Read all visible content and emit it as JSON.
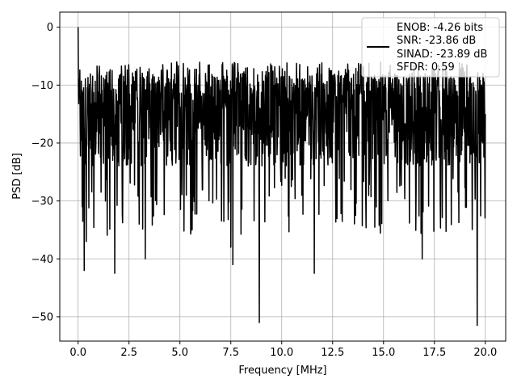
{
  "chart_data": {
    "type": "line",
    "title": "",
    "xlabel": "Frequency [MHz]",
    "ylabel": "PSD [dB]",
    "xlim": [
      -0.9,
      21.0
    ],
    "ylim": [
      -54.2,
      2.6
    ],
    "xticks": [
      0.0,
      2.5,
      5.0,
      7.5,
      10.0,
      12.5,
      15.0,
      17.5,
      20.0
    ],
    "xtick_labels": [
      "0.0",
      "2.5",
      "5.0",
      "7.5",
      "10.0",
      "12.5",
      "15.0",
      "17.5",
      "20.0"
    ],
    "yticks": [
      0,
      -10,
      -20,
      -30,
      -40,
      -50
    ],
    "ytick_labels": [
      "0",
      "−10",
      "−20",
      "−30",
      "−40",
      "−50"
    ],
    "grid": true,
    "legend_position": "top-right",
    "legend": [
      "ENOB: -4.26 bits",
      "SNR: -23.86 dB",
      "SINAD: -23.89 dB",
      "SFDR: 0.59"
    ],
    "series": [
      {
        "color": "#000000",
        "noise_floor_db_range": [
          -24,
          -8
        ],
        "x": [
          0.0,
          0.02,
          0.05,
          0.1,
          0.2,
          0.3,
          0.4,
          1.8,
          3.3,
          5.6,
          7.5,
          7.6,
          8.9,
          11.6,
          16.9,
          19.6,
          20.0
        ],
        "y": [
          0.0,
          -12.0,
          -9.0,
          -16.0,
          -31.0,
          -42.0,
          -37.0,
          -42.5,
          -40.0,
          -35.0,
          -38.0,
          -41.0,
          -51.0,
          -42.5,
          -40.0,
          -51.5,
          -15.0
        ]
      }
    ]
  }
}
